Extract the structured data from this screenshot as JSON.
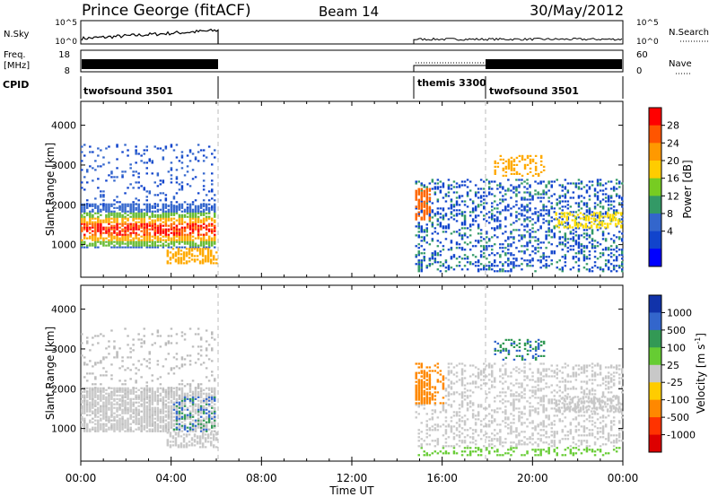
{
  "header": {
    "title": "Prince George (fitACF)",
    "beam": "Beam 14",
    "date": "30/May/2012"
  },
  "summary": {
    "nsky_label": "N.Sky",
    "nsearch_label": "N.Search",
    "freq_label_line1": "Freq.",
    "freq_label_line2": "[MHz]",
    "nave_label": "Nave",
    "cpid_label": "CPID",
    "nsky_ticks": [
      "10^5",
      "10^0"
    ],
    "nsearch_ticks": [
      "10^5",
      "10^0"
    ],
    "freq_ticks": [
      "18",
      "8"
    ],
    "nave_ticks": [
      "60",
      "0"
    ],
    "cpid_segments": [
      {
        "label": "twofsound 3501",
        "start": 0,
        "end": 6
      },
      {
        "label": "themis 3300",
        "start": 14.9,
        "end": 18
      },
      {
        "label": "twofsound 3501",
        "start": 18,
        "end": 24
      }
    ]
  },
  "xaxis": {
    "label": "Time UT",
    "ticks": [
      "00:00",
      "04:00",
      "08:00",
      "12:00",
      "16:00",
      "20:00",
      "00:00"
    ]
  },
  "chart_data": [
    {
      "type": "heatmap",
      "name": "power-panel",
      "ylabel": "Slant Range [km]",
      "xlim": [
        0,
        24
      ],
      "ylim": [
        180,
        4600
      ],
      "yticks": [
        "1000",
        "2000",
        "3000",
        "4000"
      ],
      "colorbar": {
        "title": "Power [dB]",
        "labels": [
          "28",
          "24",
          "20",
          "16",
          "12",
          "8",
          "4"
        ],
        "colors": [
          "#ff0000",
          "#ff5500",
          "#ff9900",
          "#ffcc00",
          "#77cc22",
          "#339966",
          "#3366cc",
          "#1144cc",
          "#0000ff"
        ]
      },
      "data_gaps": [
        [
          6,
          14.8
        ]
      ],
      "cpid_change_hours": [
        6,
        18
      ]
    },
    {
      "type": "heatmap",
      "name": "velocity-panel",
      "ylabel": "Slant Range [km]",
      "xlim": [
        0,
        24
      ],
      "ylim": [
        180,
        4600
      ],
      "yticks": [
        "1000",
        "2000",
        "3000",
        "4000"
      ],
      "colorbar": {
        "title": "Velocity [m s-1]",
        "title_main": "Velocity [m s",
        "title_sup": "-1",
        "title_end": "]",
        "labels": [
          "1000",
          "500",
          "100",
          "25",
          "-25",
          "-100",
          "-500",
          "-1000"
        ],
        "colors": [
          "#1133aa",
          "#3366cc",
          "#339955",
          "#66cc33",
          "#c8c8c8",
          "#ffcc00",
          "#ff8800",
          "#ff3300",
          "#dd0000"
        ]
      },
      "data_gaps": [
        [
          6,
          14.8
        ]
      ],
      "cpid_change_hours": [
        6,
        18
      ]
    }
  ]
}
